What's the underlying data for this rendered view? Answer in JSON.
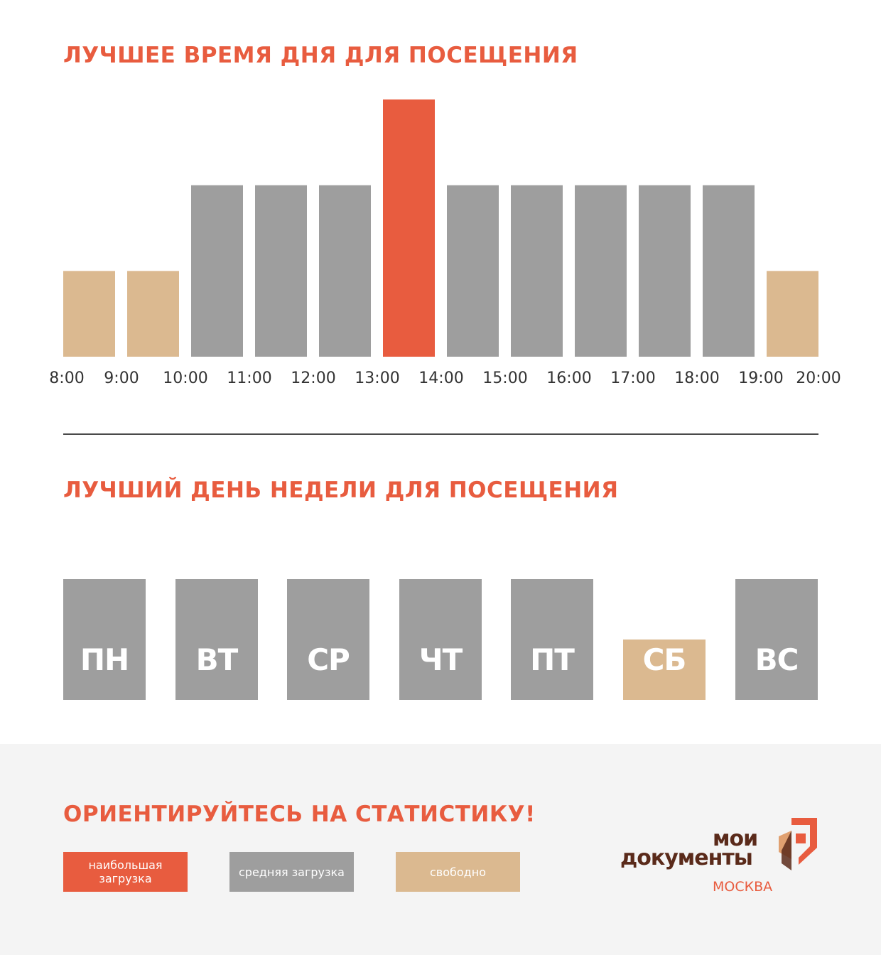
{
  "colors": {
    "accent": "#e85c3f",
    "busy": "#e85c3f",
    "average": "#9e9e9e",
    "free": "#dbb990",
    "logo_brown": "#5a2a1a"
  },
  "titles": {
    "best_time": "ЛУЧШЕЕ ВРЕМЯ ДНЯ ДЛЯ ПОСЕЩЕНИЯ",
    "best_day": "ЛУЧШИЙ ДЕНЬ НЕДЕЛИ ДЛЯ ПОСЕЩЕНИЯ",
    "footer": "ОРИЕНТИРУЙТЕСЬ НА СТАТИСТИКУ!"
  },
  "chart_data": [
    {
      "type": "bar",
      "title": "ЛУЧШЕЕ ВРЕМЯ ДНЯ ДЛЯ ПОСЕЩЕНИЯ",
      "x_ticks": [
        "8:00",
        "9:00",
        "10:00",
        "11:00",
        "12:00",
        "13:00",
        "14:00",
        "15:00",
        "16:00",
        "17:00",
        "18:00",
        "19:00",
        "20:00"
      ],
      "categories": [
        "8:00–9:00",
        "9:00–10:00",
        "10:00–11:00",
        "11:00–12:00",
        "12:00–13:00",
        "13:00–14:00",
        "14:00–15:00",
        "15:00–16:00",
        "16:00–17:00",
        "17:00–18:00",
        "18:00–19:00",
        "19:00–20:00"
      ],
      "values": [
        1,
        1,
        2,
        2,
        2,
        3,
        2,
        2,
        2,
        2,
        2,
        1
      ],
      "levels": [
        "free",
        "free",
        "average",
        "average",
        "average",
        "busy",
        "average",
        "average",
        "average",
        "average",
        "average",
        "free"
      ],
      "ylim": [
        0,
        3
      ],
      "grid": false
    },
    {
      "type": "bar",
      "title": "ЛУЧШИЙ ДЕНЬ НЕДЕЛИ ДЛЯ ПОСЕЩЕНИЯ",
      "categories": [
        "ПН",
        "ВТ",
        "СР",
        "ЧТ",
        "ПТ",
        "СБ",
        "ВС"
      ],
      "values": [
        2,
        2,
        2,
        2,
        2,
        1,
        2
      ],
      "levels": [
        "average",
        "average",
        "average",
        "average",
        "average",
        "free",
        "average"
      ]
    }
  ],
  "legend": [
    {
      "level": "busy",
      "label": "наибольшая загрузка"
    },
    {
      "level": "average",
      "label": "средняя загрузка"
    },
    {
      "level": "free",
      "label": "свободно"
    }
  ],
  "logo": {
    "line1": "мои",
    "line2": "документы",
    "line3": "МОСКВА"
  }
}
